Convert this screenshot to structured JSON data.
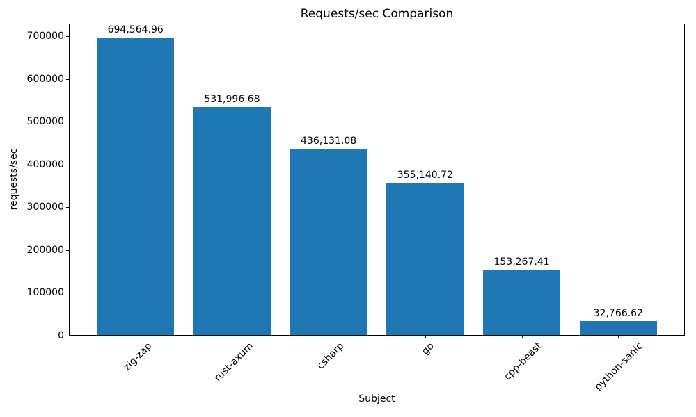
{
  "chart_data": {
    "type": "bar",
    "title": "Requests/sec Comparison",
    "xlabel": "Subject",
    "ylabel": "requests/sec",
    "categories": [
      "zig-zap",
      "rust-axum",
      "csharp",
      "go",
      "cpp-beast",
      "python-sanic"
    ],
    "values": [
      694564.96,
      531996.68,
      436131.08,
      355140.72,
      153267.41,
      32766.62
    ],
    "value_labels": [
      "694,564.96",
      "531,996.68",
      "436,131.08",
      "355,140.72",
      "153,267.41",
      "32,766.62"
    ],
    "bar_color": "#1f77b4",
    "ylim": [
      0,
      729293
    ],
    "yticks": [
      0,
      100000,
      200000,
      300000,
      400000,
      500000,
      600000,
      700000
    ],
    "ytick_labels": [
      "0",
      "100000",
      "200000",
      "300000",
      "400000",
      "500000",
      "600000",
      "700000"
    ],
    "grid": false,
    "legend_position": "none"
  }
}
